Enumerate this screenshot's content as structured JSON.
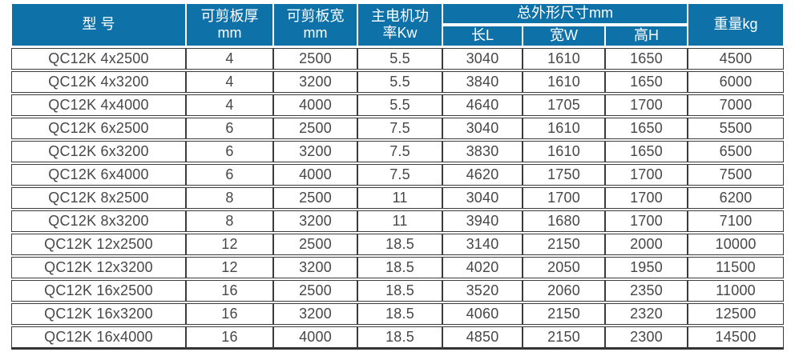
{
  "colors": {
    "header_bg": "#0E72A9",
    "header_text": "#FFFFFF",
    "body_text": "#474747",
    "border": "#3C3C3C"
  },
  "table": {
    "header": {
      "model": "型 号",
      "thickness_line1": "可剪板厚",
      "thickness_line2": "mm",
      "plate_width_line1": "可剪板宽",
      "plate_width_line2": "mm",
      "power_line1": "主电机功",
      "power_line2": "率Kw",
      "dims_group": "总外形尺寸mm",
      "dims": [
        "长L",
        "宽W",
        "高H"
      ],
      "weight": "重量kg"
    },
    "rows": [
      [
        "QC12K 4x2500",
        "4",
        "2500",
        "5.5",
        "3040",
        "1610",
        "1650",
        "4500"
      ],
      [
        "QC12K 4x3200",
        "4",
        "3200",
        "5.5",
        "3840",
        "1610",
        "1650",
        "6000"
      ],
      [
        "QC12K 4x4000",
        "4",
        "4000",
        "5.5",
        "4640",
        "1705",
        "1700",
        "7000"
      ],
      [
        "QC12K 6x2500",
        "6",
        "2500",
        "7.5",
        "3040",
        "1610",
        "1650",
        "5500"
      ],
      [
        "QC12K 6x3200",
        "6",
        "3200",
        "7.5",
        "3830",
        "1610",
        "1650",
        "6500"
      ],
      [
        "QC12K 6x4000",
        "6",
        "4000",
        "7.5",
        "4620",
        "1750",
        "1700",
        "7500"
      ],
      [
        "QC12K 8x2500",
        "8",
        "2500",
        "11",
        "3040",
        "1700",
        "1700",
        "6200"
      ],
      [
        "QC12K 8x3200",
        "8",
        "3200",
        "11",
        "3940",
        "1680",
        "1700",
        "7100"
      ],
      [
        "QC12K 12x2500",
        "12",
        "2500",
        "18.5",
        "3140",
        "2150",
        "2000",
        "10000"
      ],
      [
        "QC12K 12x3200",
        "12",
        "3200",
        "18.5",
        "4020",
        "2050",
        "1950",
        "11500"
      ],
      [
        "QC12K 16x2500",
        "16",
        "2500",
        "18.5",
        "3520",
        "2060",
        "2350",
        "11000"
      ],
      [
        "QC12K 16x3200",
        "16",
        "3200",
        "18.5",
        "4060",
        "2150",
        "2320",
        "12500"
      ],
      [
        "QC12K 16x4000",
        "16",
        "4000",
        "18.5",
        "4850",
        "2150",
        "2300",
        "14500"
      ]
    ]
  }
}
